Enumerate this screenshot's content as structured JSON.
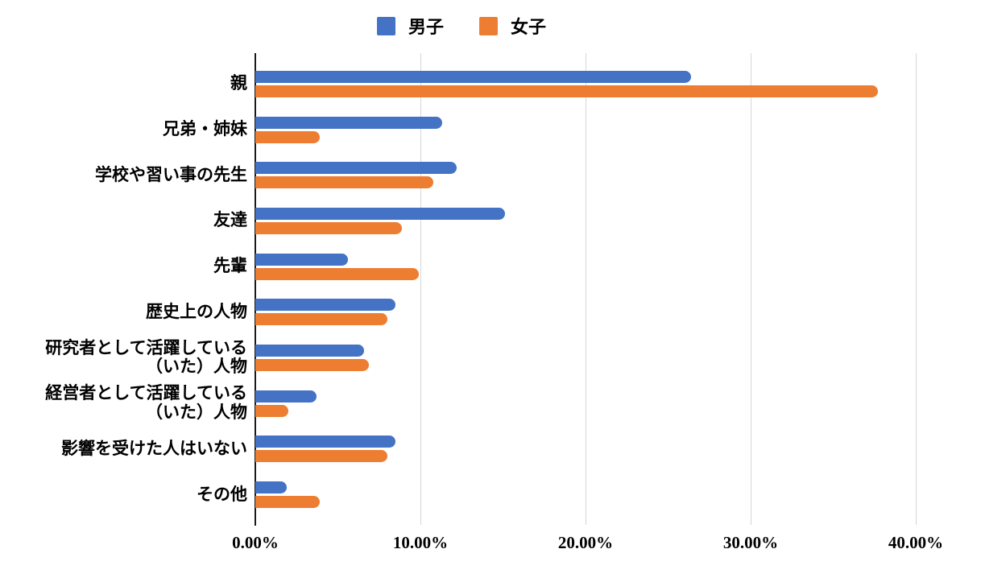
{
  "chart_data": {
    "type": "bar",
    "orientation": "horizontal",
    "title": "",
    "categories": [
      "親",
      "兄弟・姉妹",
      "学校や習い事の先生",
      "友達",
      "先輩",
      "歴史上の人物",
      "研究者として活躍している\n（いた）人物",
      "経営者として活躍している\n（いた）人物",
      "影響を受けた人はいない",
      "その他"
    ],
    "series": [
      {
        "name": "男子",
        "color": "#4472C4",
        "values": [
          26.4,
          11.3,
          12.2,
          15.1,
          5.6,
          8.5,
          6.6,
          3.7,
          8.5,
          1.9
        ]
      },
      {
        "name": "女子",
        "color": "#ED7D31",
        "values": [
          37.7,
          3.9,
          10.8,
          8.9,
          9.9,
          8.0,
          6.9,
          2.0,
          8.0,
          3.9
        ]
      }
    ],
    "x_axis": {
      "tick_labels": [
        "0.00%",
        "10.00%",
        "20.00%",
        "30.00%",
        "40.00%"
      ],
      "tick_values": [
        0,
        10,
        20,
        30,
        40
      ],
      "min": 0,
      "max": 40,
      "unit": "%"
    },
    "ylabel": "",
    "xlabel": "",
    "grid": true,
    "legend_position": "top",
    "colors": {
      "grid": "#d6d6d6",
      "axis": "#1a1a1a",
      "background": "#ffffff",
      "text": "#000000"
    }
  }
}
